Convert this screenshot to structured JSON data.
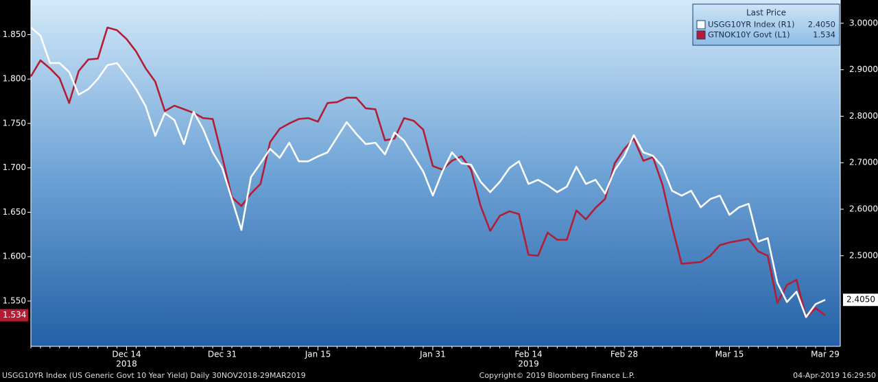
{
  "chart_data": {
    "type": "line",
    "legend_title": "Last Price",
    "legend_position": "top-right",
    "grid": false,
    "categories": [
      null,
      null,
      null,
      null,
      null,
      null,
      null,
      null,
      null,
      null,
      "Dec 14",
      null,
      null,
      null,
      null,
      null,
      null,
      null,
      null,
      null,
      "Dec 31",
      null,
      null,
      null,
      null,
      null,
      null,
      null,
      null,
      null,
      "Jan 15",
      null,
      null,
      null,
      null,
      null,
      null,
      null,
      null,
      null,
      null,
      null,
      "Jan 31",
      null,
      null,
      null,
      null,
      null,
      null,
      null,
      null,
      null,
      "Feb 14",
      null,
      null,
      null,
      null,
      null,
      null,
      null,
      null,
      null,
      "Feb 28",
      null,
      null,
      null,
      null,
      null,
      null,
      null,
      null,
      null,
      null,
      "Mar 15",
      null,
      null,
      null,
      null,
      null,
      null,
      null,
      null,
      null,
      "Mar 29"
    ],
    "category_years": [
      null,
      null,
      null,
      null,
      null,
      null,
      null,
      null,
      null,
      null,
      "2018",
      null,
      null,
      null,
      null,
      null,
      null,
      null,
      null,
      null,
      null,
      null,
      null,
      null,
      null,
      null,
      null,
      null,
      null,
      null,
      null,
      null,
      null,
      null,
      null,
      null,
      null,
      null,
      null,
      null,
      null,
      null,
      null,
      null,
      null,
      null,
      null,
      null,
      null,
      null,
      null,
      null,
      "2019",
      null,
      null,
      null,
      null,
      null,
      null,
      null,
      null,
      null,
      null,
      null,
      null,
      null,
      null,
      null,
      null,
      null,
      null,
      null,
      null,
      null,
      null,
      null,
      null,
      null,
      null,
      null,
      null,
      null,
      null,
      null
    ],
    "ylim": [
      1.499,
      1.889
    ],
    "yticks": [
      {
        "value": 1.55,
        "label": "1.550"
      },
      {
        "value": 1.6,
        "label": "1.600"
      },
      {
        "value": 1.65,
        "label": "1.650"
      },
      {
        "value": 1.7,
        "label": "1.700"
      },
      {
        "value": 1.75,
        "label": "1.750"
      },
      {
        "value": 1.8,
        "label": "1.800"
      },
      {
        "value": 1.85,
        "label": "1.850"
      }
    ],
    "y2lim": [
      2.305,
      3.05
    ],
    "y2ticks": [
      {
        "value": 2.5,
        "label": "2.5000"
      },
      {
        "value": 2.6,
        "label": "2.6000"
      },
      {
        "value": 2.7,
        "label": "2.7000"
      },
      {
        "value": 2.8,
        "label": "2.8000"
      },
      {
        "value": 2.9,
        "label": "2.9000"
      },
      {
        "value": 3.0,
        "label": "3.0000"
      }
    ],
    "series": [
      {
        "name": "USGG10YR Index  (R1)",
        "color": "#ffffff",
        "axis": "y2",
        "values": [
          2.9911,
          2.9734,
          2.9143,
          2.9143,
          2.8951,
          2.8464,
          2.8582,
          2.8804,
          2.9099,
          2.9143,
          2.8877,
          2.8582,
          2.8213,
          2.7578,
          2.8065,
          2.7917,
          2.74,
          2.8095,
          2.7725,
          2.7223,
          2.6884,
          2.6219,
          2.5554,
          2.6692,
          2.6987,
          2.7297,
          2.7105,
          2.743,
          2.7031,
          2.7031,
          2.7135,
          2.7223,
          2.7548,
          2.7873,
          2.7622,
          2.74,
          2.743,
          2.7179,
          2.7652,
          2.7474,
          2.7135,
          2.681,
          2.6293,
          2.681,
          2.7223,
          2.6987,
          2.6957,
          2.6588,
          2.6367,
          2.6588,
          2.6884,
          2.7031,
          2.6544,
          2.6632,
          2.6514,
          2.6367,
          2.6485,
          2.6913,
          2.6544,
          2.6632,
          2.6337,
          2.6839,
          2.7135,
          2.7593,
          2.7223,
          2.7149,
          2.6913,
          2.6396,
          2.6293,
          2.6396,
          2.6042,
          2.6219,
          2.6293,
          2.5879,
          2.6042,
          2.6116,
          2.5303,
          2.5377,
          2.4417,
          2.4004,
          2.4225,
          2.3679,
          2.3959,
          2.405
        ],
        "value_labels": [
          null,
          null,
          null,
          null,
          null,
          null,
          null,
          null,
          null,
          null,
          null,
          null,
          null,
          null,
          null,
          null,
          null,
          null,
          null,
          null,
          null,
          null,
          null,
          null,
          null,
          null,
          null,
          null,
          null,
          null,
          null,
          null,
          null,
          null,
          null,
          null,
          null,
          null,
          null,
          null,
          null,
          null,
          null,
          null,
          null,
          null,
          null,
          null,
          null,
          null,
          null,
          null,
          null,
          null,
          null,
          null,
          null,
          null,
          null,
          null,
          null,
          null,
          null,
          null,
          null,
          null,
          null,
          null,
          null,
          null,
          null,
          null,
          null,
          null,
          null,
          null,
          null,
          null,
          null,
          null,
          null,
          null,
          null,
          "2.4050"
        ]
      },
      {
        "name": "GTNOK10Y Govt  (L1)",
        "color": "#b41c36",
        "axis": "y",
        "values": [
          1.803,
          1.821,
          1.812,
          1.801,
          1.773,
          1.809,
          1.822,
          1.823,
          1.858,
          1.855,
          1.845,
          1.831,
          1.812,
          1.797,
          1.764,
          1.77,
          1.766,
          1.762,
          1.756,
          1.755,
          1.712,
          1.667,
          1.657,
          1.671,
          1.682,
          1.729,
          1.744,
          1.75,
          1.755,
          1.756,
          1.752,
          1.773,
          1.774,
          1.779,
          1.779,
          1.767,
          1.766,
          1.731,
          1.733,
          1.756,
          1.753,
          1.743,
          1.702,
          1.698,
          1.708,
          1.713,
          1.698,
          1.657,
          1.629,
          1.646,
          1.651,
          1.648,
          1.602,
          1.601,
          1.627,
          1.619,
          1.619,
          1.652,
          1.642,
          1.655,
          1.665,
          1.705,
          1.721,
          1.733,
          1.708,
          1.712,
          1.681,
          1.634,
          1.592,
          1.593,
          1.594,
          1.601,
          1.613,
          1.616,
          1.618,
          1.62,
          1.606,
          1.601,
          1.548,
          1.568,
          1.574,
          1.532,
          1.542,
          1.534
        ],
        "value_labels": [
          null,
          null,
          null,
          null,
          null,
          null,
          null,
          null,
          null,
          null,
          null,
          null,
          null,
          null,
          null,
          null,
          null,
          null,
          null,
          null,
          null,
          null,
          null,
          null,
          null,
          null,
          null,
          null,
          null,
          null,
          null,
          null,
          null,
          null,
          null,
          null,
          null,
          null,
          null,
          null,
          null,
          null,
          null,
          null,
          null,
          null,
          null,
          null,
          null,
          null,
          null,
          null,
          null,
          null,
          null,
          null,
          null,
          null,
          null,
          null,
          null,
          null,
          null,
          null,
          null,
          null,
          null,
          null,
          null,
          null,
          null,
          null,
          null,
          null,
          null,
          null,
          null,
          null,
          null,
          null,
          null,
          null,
          null,
          "1.534"
        ]
      }
    ],
    "footer": {
      "left": "USGG10YR Index (US Generic Govt 10 Year Yield)  Daily 30NOV2018-29MAR2019",
      "center": "Copyright© 2019 Bloomberg Finance L.P.",
      "right": "04-Apr-2019 16:29:50"
    }
  }
}
